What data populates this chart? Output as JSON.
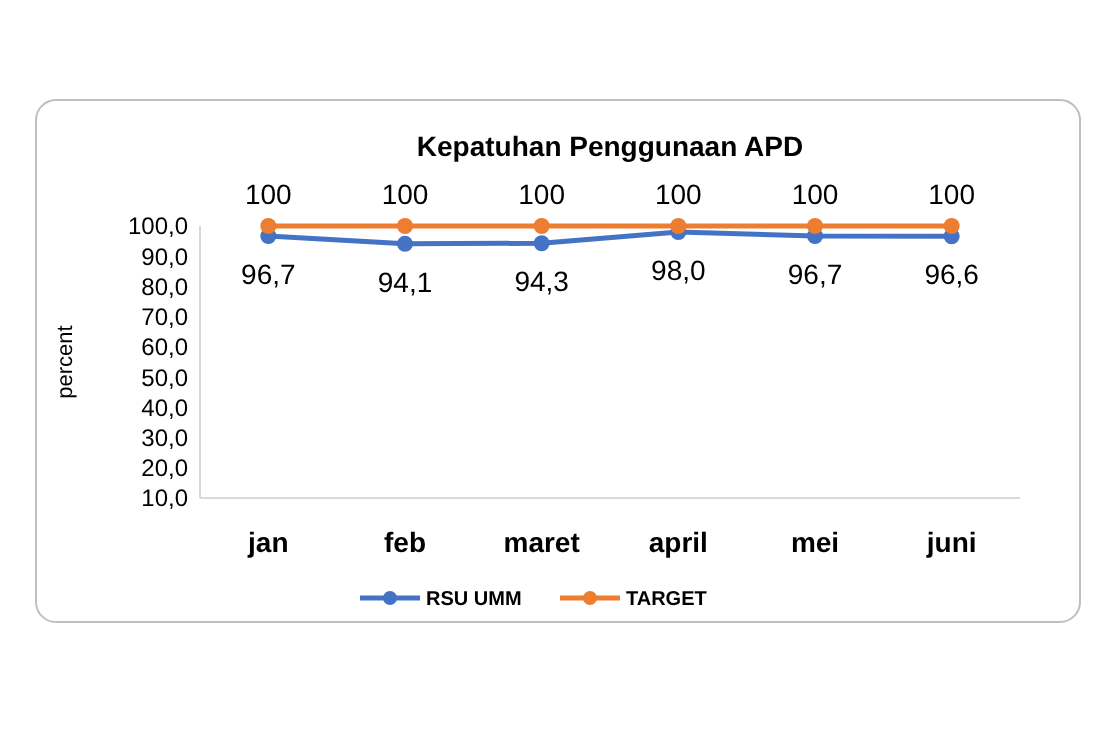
{
  "chart_data": {
    "type": "line",
    "title": "Kepatuhan Penggunaan APD",
    "ylabel": "percent",
    "categories": [
      "jan",
      "feb",
      "maret",
      "april",
      "mei",
      "juni"
    ],
    "series": [
      {
        "name": "RSU UMM",
        "color": "#4472c4",
        "values": [
          96.7,
          94.1,
          94.3,
          98.0,
          96.7,
          96.6
        ],
        "value_labels": [
          "96,7",
          "94,1",
          "94,3",
          "98,0",
          "96,7",
          "96,6"
        ]
      },
      {
        "name": "TARGET",
        "color": "#ed7d31",
        "values": [
          100,
          100,
          100,
          100,
          100,
          100
        ],
        "value_labels": [
          "100",
          "100",
          "100",
          "100",
          "100",
          "100"
        ]
      }
    ],
    "ylim": [
      10,
      100
    ],
    "yticks": [
      {
        "value": 10,
        "label": "10,0"
      },
      {
        "value": 20,
        "label": "20,0"
      },
      {
        "value": 30,
        "label": "30,0"
      },
      {
        "value": 40,
        "label": "40,0"
      },
      {
        "value": 50,
        "label": "50,0"
      },
      {
        "value": 60,
        "label": "60,0"
      },
      {
        "value": 70,
        "label": "70,0"
      },
      {
        "value": 80,
        "label": "80,0"
      },
      {
        "value": 90,
        "label": "90,0"
      },
      {
        "value": 100,
        "label": "100,0"
      }
    ],
    "grid": false,
    "legend": "bottom",
    "marker": "circle",
    "line_style": "solid"
  }
}
